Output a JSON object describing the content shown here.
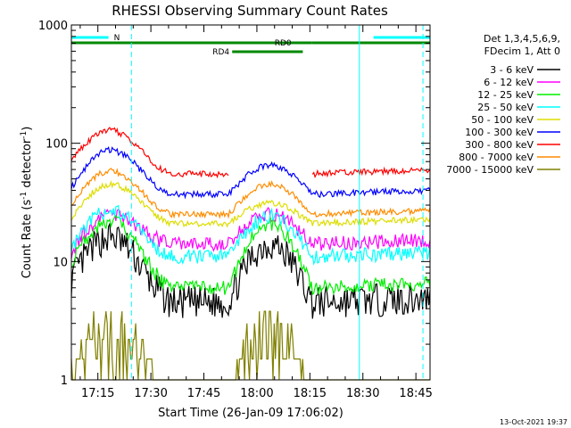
{
  "chart_data": {
    "type": "line",
    "title": "RHESSI Observing Summary Count Rates",
    "xlabel": "Start Time (26-Jan-09 17:06:02)",
    "ylabel": "Count Rate (s",
    "ylabel_sup1": "-1",
    "ylabel_mid": " detector",
    "ylabel_sup2": "-1",
    "ylabel_end": ")",
    "y_scale": "log",
    "ylim": [
      1,
      1000
    ],
    "x_range_minutes": [
      -7.5,
      94
    ],
    "x_ticks": [
      {
        "minutes": 0,
        "label": "17:15"
      },
      {
        "minutes": 15,
        "label": "17:30"
      },
      {
        "minutes": 30,
        "label": "17:45"
      },
      {
        "minutes": 45,
        "label": "18:00"
      },
      {
        "minutes": 60,
        "label": "18:15"
      },
      {
        "minutes": 75,
        "label": "18:30"
      },
      {
        "minutes": 90,
        "label": "18:45"
      }
    ],
    "y_ticks": [
      {
        "value": 1,
        "label": "1"
      },
      {
        "value": 10,
        "label": "10"
      },
      {
        "value": 100,
        "label": "100"
      },
      {
        "value": 1000,
        "label": "1000"
      }
    ],
    "legend_header": [
      "Det 1,3,4,5,6,9,",
      "FDecim 1, Att 0"
    ],
    "series": [
      {
        "name": "3 - 6 keV",
        "color": "#000000",
        "day_start": 7,
        "day_peak": 16,
        "day_low": 4.5,
        "night_peak": 14
      },
      {
        "name": "6 - 12 keV",
        "color": "#ff00ff",
        "day_start": 12,
        "day_peak": 25,
        "day_low": 14,
        "night_peak": 25
      },
      {
        "name": "12 - 25 keV",
        "color": "#00ee00",
        "day_start": 10,
        "day_peak": 22,
        "day_low": 6,
        "night_peak": 21
      },
      {
        "name": "25 - 50 keV",
        "color": "#00ffff",
        "day_start": 13,
        "day_peak": 27,
        "day_low": 11,
        "night_peak": 24
      },
      {
        "name": "50 - 100 keV",
        "color": "#dddd00",
        "day_start": 23,
        "day_peak": 45,
        "day_low": 21,
        "night_peak": 31
      },
      {
        "name": "100 - 300 keV",
        "color": "#0000ff",
        "day_start": 42,
        "day_peak": 87,
        "day_low": 37,
        "night_peak": 65
      },
      {
        "name": "300 - 800 keV",
        "color": "#ff0000",
        "day_start": 72,
        "day_peak": 128,
        "day_low": 55,
        "night_peak": 0
      },
      {
        "name": "800 - 7000 keV",
        "color": "#ff8c00",
        "day_start": 30,
        "day_peak": 58,
        "day_low": 25,
        "night_peak": 45
      },
      {
        "name": "7000 - 15000 keV",
        "color": "#808000",
        "day_start": 1.5,
        "day_peak": 3.8,
        "day_low": 1,
        "night_peak": 3.8
      }
    ],
    "flag_bars": [
      {
        "label": "N",
        "color": "#00ffff",
        "segments": [
          [
            -7.5,
            3
          ],
          [
            78,
            94
          ]
        ]
      },
      {
        "label": "RD0",
        "color": "#008800",
        "segments": [
          [
            -7.5,
            60.5
          ],
          [
            60.5,
            94
          ]
        ]
      },
      {
        "label": "RD4",
        "color": "#008800",
        "segments": [
          [
            38,
            58
          ]
        ]
      }
    ],
    "vlines": [
      {
        "minutes": -7.5,
        "style": "solid"
      },
      {
        "minutes": 9.5,
        "style": "dashed"
      },
      {
        "minutes": 74,
        "style": "solid"
      },
      {
        "minutes": 92,
        "style": "dashed"
      }
    ],
    "footer_date": "13-Oct-2021 19:37",
    "grid": false,
    "legend_placement": "top-right"
  }
}
